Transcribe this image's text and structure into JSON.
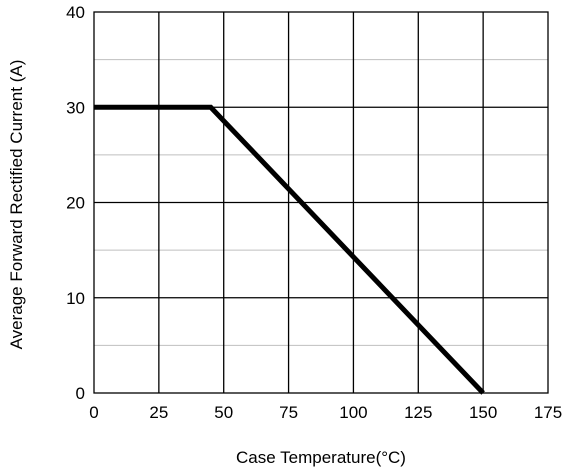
{
  "chart_data": {
    "type": "line",
    "title": "",
    "xlabel": "Case Temperature(°C)",
    "ylabel": "Average Forward Rectified Current  (A)",
    "xlim": [
      0,
      175
    ],
    "ylim": [
      0,
      40
    ],
    "x_ticks": [
      0,
      25,
      50,
      75,
      100,
      125,
      150,
      175
    ],
    "y_ticks": [
      0,
      10,
      20,
      30,
      40
    ],
    "y_minor_gridlines": [
      5,
      15,
      25,
      35
    ],
    "grid": true,
    "legend": "none",
    "series": [
      {
        "x": [
          0,
          45,
          150
        ],
        "y": [
          30,
          30,
          0
        ],
        "color": "#000000"
      }
    ],
    "colors": {
      "major_grid": "#000000",
      "minor_grid": "#bfbfbf",
      "line": "#000000"
    }
  }
}
